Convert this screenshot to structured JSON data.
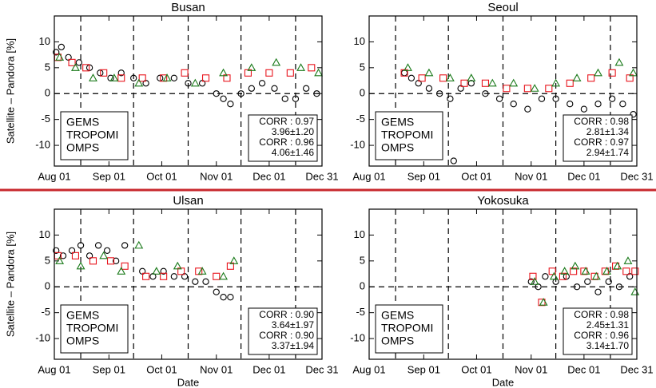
{
  "chart_data": [
    {
      "type": "scatter",
      "title": "Busan",
      "ylabel": "Satellite – Pandora [%]",
      "xlim": [
        0,
        152
      ],
      "ylim": [
        -14,
        15
      ],
      "xticks": [
        {
          "value": 0,
          "label": "Aug 01"
        },
        {
          "value": 31,
          "label": "Sep 01"
        },
        {
          "value": 61,
          "label": "Oct 01"
        },
        {
          "value": 92,
          "label": "Nov 01"
        },
        {
          "value": 122,
          "label": "Dec 01"
        },
        {
          "value": 152,
          "label": "Dec 31"
        }
      ],
      "yticks": [
        -10,
        -5,
        0,
        5,
        10
      ],
      "vlines": [
        15,
        45,
        76,
        106,
        137
      ],
      "hline": 0,
      "series": [
        {
          "name": "GEMS",
          "color": "#000000",
          "marker": "circle",
          "x": [
            1,
            4,
            8,
            14,
            20,
            26,
            32,
            38,
            45,
            52,
            60,
            68,
            76,
            84,
            92,
            96,
            100,
            106,
            112,
            118,
            125,
            131,
            137,
            143,
            149
          ],
          "values": [
            8,
            9,
            7,
            6,
            5,
            4,
            3,
            4,
            3,
            2,
            3,
            3,
            2,
            2,
            0,
            -1,
            -2,
            0,
            1,
            2,
            1,
            -1,
            -1,
            1,
            0
          ]
        },
        {
          "name": "TROPOMI",
          "color": "#e8141c",
          "marker": "square",
          "x": [
            2,
            10,
            18,
            28,
            38,
            50,
            62,
            74,
            86,
            98,
            110,
            122,
            134,
            146
          ],
          "values": [
            7,
            6,
            5,
            4,
            3,
            3,
            3,
            4,
            3,
            3,
            4,
            4,
            4,
            5
          ]
        },
        {
          "name": "OMPS",
          "color": "#1a7a1a",
          "marker": "triangle",
          "x": [
            3,
            12,
            22,
            34,
            48,
            64,
            80,
            96,
            112,
            126,
            140,
            150
          ],
          "values": [
            7,
            5,
            3,
            3,
            2,
            3,
            2,
            4,
            5,
            6,
            5,
            4
          ]
        }
      ],
      "annotations": [
        {
          "text": "CORR : 0.97",
          "color": "#e8141c"
        },
        {
          "text": "3.96±1.20",
          "color": "#e8141c"
        },
        {
          "text": "CORR : 0.96",
          "color": "#1a7a1a"
        },
        {
          "text": "4.06±1.46",
          "color": "#1a7a1a"
        }
      ]
    },
    {
      "type": "scatter",
      "title": "Seoul",
      "xlim": [
        0,
        152
      ],
      "ylim": [
        -14,
        15
      ],
      "xticks": [
        {
          "value": 0,
          "label": "Aug 01"
        },
        {
          "value": 31,
          "label": "Sep 01"
        },
        {
          "value": 61,
          "label": "Oct 01"
        },
        {
          "value": 92,
          "label": "Nov 01"
        },
        {
          "value": 122,
          "label": "Dec 01"
        },
        {
          "value": 152,
          "label": "Dec 31"
        }
      ],
      "yticks": [
        -10,
        -5,
        0,
        5,
        10
      ],
      "vlines": [
        15,
        45,
        76,
        106,
        137
      ],
      "hline": 0,
      "series": [
        {
          "name": "GEMS",
          "color": "#000000",
          "marker": "circle",
          "x": [
            20,
            24,
            28,
            34,
            40,
            46,
            48,
            52,
            58,
            66,
            74,
            82,
            90,
            98,
            106,
            114,
            122,
            130,
            138,
            144,
            150
          ],
          "values": [
            4,
            3,
            2,
            1,
            0,
            -1,
            -13,
            1,
            2,
            0,
            -1,
            -2,
            -3,
            -1,
            -1,
            -2,
            -3,
            -2,
            -1,
            -2,
            -4
          ]
        },
        {
          "name": "TROPOMI",
          "color": "#e8141c",
          "marker": "square",
          "x": [
            20,
            30,
            42,
            54,
            66,
            78,
            90,
            102,
            114,
            126,
            138,
            148
          ],
          "values": [
            4,
            3,
            3,
            2,
            2,
            1,
            1,
            1,
            2,
            3,
            4,
            3
          ]
        },
        {
          "name": "OMPS",
          "color": "#1a7a1a",
          "marker": "triangle",
          "x": [
            22,
            34,
            46,
            58,
            70,
            82,
            94,
            106,
            118,
            130,
            142,
            150
          ],
          "values": [
            5,
            4,
            3,
            3,
            2,
            2,
            1,
            2,
            3,
            4,
            6,
            4
          ]
        }
      ],
      "annotations": [
        {
          "text": "CORR : 0.98",
          "color": "#e8141c"
        },
        {
          "text": "2.81±1.34",
          "color": "#e8141c"
        },
        {
          "text": "CORR : 0.97",
          "color": "#1a7a1a"
        },
        {
          "text": "2.94±1.74",
          "color": "#1a7a1a"
        }
      ]
    },
    {
      "type": "scatter",
      "title": "Ulsan",
      "ylabel": "Satellite – Pandora [%]",
      "xlabel": "Date",
      "xlim": [
        0,
        152
      ],
      "ylim": [
        -14,
        15
      ],
      "xticks": [
        {
          "value": 0,
          "label": "Aug 01"
        },
        {
          "value": 31,
          "label": "Sep 01"
        },
        {
          "value": 61,
          "label": "Oct 01"
        },
        {
          "value": 92,
          "label": "Nov 01"
        },
        {
          "value": 122,
          "label": "Dec 01"
        },
        {
          "value": 152,
          "label": "Dec 31"
        }
      ],
      "yticks": [
        -10,
        -5,
        0,
        5,
        10
      ],
      "vlines": [
        15,
        45,
        76,
        106,
        137
      ],
      "hline": 0,
      "series": [
        {
          "name": "GEMS",
          "color": "#000000",
          "marker": "circle",
          "x": [
            1,
            5,
            10,
            15,
            20,
            25,
            30,
            35,
            40,
            50,
            56,
            62,
            68,
            74,
            80,
            86,
            92,
            96,
            100
          ],
          "values": [
            7,
            6,
            7,
            8,
            6,
            8,
            7,
            5,
            8,
            3,
            2,
            3,
            2,
            2,
            1,
            1,
            -1,
            -2,
            -2
          ]
        },
        {
          "name": "TROPOMI",
          "color": "#e8141c",
          "marker": "square",
          "x": [
            2,
            12,
            22,
            32,
            40,
            52,
            62,
            72,
            82,
            92,
            100
          ],
          "values": [
            6,
            6,
            5,
            5,
            4,
            2,
            2,
            3,
            3,
            2,
            4
          ]
        },
        {
          "name": "OMPS",
          "color": "#1a7a1a",
          "marker": "triangle",
          "x": [
            3,
            15,
            28,
            38,
            48,
            58,
            70,
            84,
            96,
            102
          ],
          "values": [
            5,
            4,
            6,
            3,
            8,
            3,
            4,
            3,
            2,
            5
          ]
        }
      ],
      "annotations": [
        {
          "text": "CORR : 0.90",
          "color": "#e8141c"
        },
        {
          "text": "3.64±1.97",
          "color": "#e8141c"
        },
        {
          "text": "CORR : 0.90",
          "color": "#1a7a1a"
        },
        {
          "text": "3.37±1.94",
          "color": "#1a7a1a"
        }
      ]
    },
    {
      "type": "scatter",
      "title": "Yokosuka",
      "xlabel": "Date",
      "xlim": [
        0,
        152
      ],
      "ylim": [
        -14,
        15
      ],
      "xticks": [
        {
          "value": 0,
          "label": "Aug 01"
        },
        {
          "value": 31,
          "label": "Sep 01"
        },
        {
          "value": 61,
          "label": "Oct 01"
        },
        {
          "value": 92,
          "label": "Nov 01"
        },
        {
          "value": 122,
          "label": "Dec 01"
        },
        {
          "value": 152,
          "label": "Dec 31"
        }
      ],
      "yticks": [
        -10,
        -5,
        0,
        5,
        10
      ],
      "vlines": [
        15,
        45,
        76,
        106,
        137
      ],
      "hline": 0,
      "series": [
        {
          "name": "GEMS",
          "color": "#000000",
          "marker": "circle",
          "x": [
            92,
            96,
            100,
            106,
            112,
            118,
            124,
            130,
            136,
            142,
            148
          ],
          "values": [
            1,
            0,
            2,
            1,
            2,
            0,
            1,
            -1,
            1,
            0,
            2
          ]
        },
        {
          "name": "TROPOMI",
          "color": "#e8141c",
          "marker": "square",
          "x": [
            93,
            98,
            104,
            110,
            116,
            122,
            128,
            134,
            140,
            146,
            151
          ],
          "values": [
            2,
            -3,
            3,
            2,
            3,
            3,
            2,
            3,
            4,
            3,
            3
          ]
        },
        {
          "name": "OMPS",
          "color": "#1a7a1a",
          "marker": "triangle",
          "x": [
            94,
            99,
            105,
            111,
            117,
            123,
            129,
            135,
            141,
            147,
            151
          ],
          "values": [
            1,
            -3,
            2,
            3,
            4,
            3,
            2,
            3,
            4,
            5,
            -1
          ]
        }
      ],
      "annotations": [
        {
          "text": "CORR : 0.98",
          "color": "#e8141c"
        },
        {
          "text": "2.45±1.31",
          "color": "#e8141c"
        },
        {
          "text": "CORR : 0.96",
          "color": "#1a7a1a"
        },
        {
          "text": "3.14±1.70",
          "color": "#1a7a1a"
        }
      ]
    }
  ]
}
